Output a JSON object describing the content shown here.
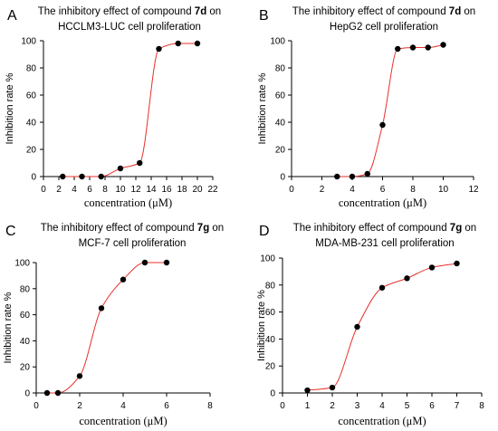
{
  "chart_data": [
    {
      "type": "scatter",
      "panel": "A",
      "title_pre": "The inhibitory effect of compound ",
      "title_bold": "7d",
      "title_post": " on",
      "title_line2": "HCCLM3-LUC cell proliferation",
      "xlabel": "concentration (μM)",
      "ylabel": "Inhibition rate %",
      "xlim": [
        0,
        22
      ],
      "ylim": [
        0,
        100
      ],
      "xticks": [
        0,
        2,
        4,
        6,
        8,
        10,
        12,
        14,
        16,
        18,
        20,
        22
      ],
      "yticks": [
        0,
        20,
        40,
        60,
        80,
        100
      ],
      "points": [
        [
          2.5,
          0
        ],
        [
          5,
          0
        ],
        [
          7.5,
          0
        ],
        [
          10,
          6
        ],
        [
          12.5,
          10
        ],
        [
          15,
          94
        ],
        [
          17.5,
          98
        ],
        [
          20,
          98
        ]
      ],
      "curve_color": "#e8302a"
    },
    {
      "type": "scatter",
      "panel": "B",
      "title_pre": "The inhibitory effect of compound ",
      "title_bold": "7d",
      "title_post": " on",
      "title_line2": "HepG2 cell proliferation",
      "xlabel": "concentration (μM)",
      "ylabel": "Inhibition rate %",
      "xlim": [
        0,
        12
      ],
      "ylim": [
        0,
        100
      ],
      "xticks": [
        0,
        2,
        4,
        6,
        8,
        10,
        12
      ],
      "yticks": [
        0,
        20,
        40,
        60,
        80,
        100
      ],
      "points": [
        [
          3,
          0
        ],
        [
          4,
          0
        ],
        [
          5,
          2
        ],
        [
          6,
          38
        ],
        [
          7,
          94
        ],
        [
          8,
          95
        ],
        [
          9,
          95
        ],
        [
          10,
          97
        ]
      ],
      "curve_color": "#e8302a"
    },
    {
      "type": "scatter",
      "panel": "C",
      "title_pre": "The inhibitory effect of compound ",
      "title_bold": "7g",
      "title_post": " on",
      "title_line2": "MCF-7 cell proliferation",
      "xlabel": "concentration (μM)",
      "ylabel": "Inhibition rate %",
      "xlim": [
        0,
        8
      ],
      "ylim": [
        0,
        100
      ],
      "xticks": [
        0,
        2,
        4,
        6,
        8
      ],
      "yticks": [
        0,
        20,
        40,
        60,
        80,
        100
      ],
      "points": [
        [
          0.5,
          0
        ],
        [
          1,
          0
        ],
        [
          2,
          13
        ],
        [
          3,
          65
        ],
        [
          4,
          87
        ],
        [
          5,
          100
        ],
        [
          6,
          100
        ]
      ],
      "curve_color": "#e8302a"
    },
    {
      "type": "scatter",
      "panel": "D",
      "title_pre": "The inhibitory effect of compound ",
      "title_bold": "7g",
      "title_post": " on",
      "title_line2": "MDA-MB-231 cell proliferation",
      "xlabel": "concentration (μM)",
      "ylabel": "Inhibition rate %",
      "xlim": [
        0,
        8
      ],
      "ylim": [
        0,
        100
      ],
      "xticks": [
        0,
        1,
        2,
        3,
        4,
        5,
        6,
        7,
        8
      ],
      "yticks": [
        0,
        20,
        40,
        60,
        80,
        100
      ],
      "points": [
        [
          1,
          2
        ],
        [
          2,
          4
        ],
        [
          3,
          49
        ],
        [
          4,
          78
        ],
        [
          5,
          85
        ],
        [
          6,
          93
        ],
        [
          7,
          96
        ]
      ],
      "curve_color": "#e8302a"
    }
  ]
}
